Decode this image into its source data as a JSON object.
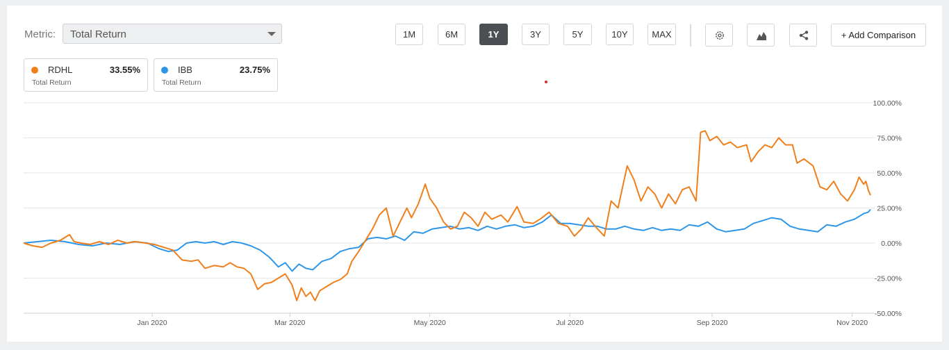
{
  "metric": {
    "label": "Metric:",
    "value": "Total Return"
  },
  "ranges": [
    {
      "label": "1M",
      "active": false
    },
    {
      "label": "6M",
      "active": false
    },
    {
      "label": "1Y",
      "active": true
    },
    {
      "label": "3Y",
      "active": false
    },
    {
      "label": "5Y",
      "active": false
    },
    {
      "label": "10Y",
      "active": false
    },
    {
      "label": "MAX",
      "active": false
    }
  ],
  "tools": [
    {
      "icon": "gear-icon"
    },
    {
      "icon": "area-chart-icon"
    },
    {
      "icon": "share-icon"
    }
  ],
  "add_comparison": "+ Add Comparison",
  "legend": [
    {
      "symbol": "RDHL",
      "value": "33.55%",
      "sub": "Total Return",
      "color": "#f07f1b"
    },
    {
      "symbol": "IBB",
      "value": "23.75%",
      "sub": "Total Return",
      "color": "#2e96e8"
    }
  ],
  "chart_data": {
    "type": "line",
    "y_ticks": [
      "100.00%",
      "75.00%",
      "50.00%",
      "25.00%",
      "0.00%",
      "-25.00%",
      "-50.00%"
    ],
    "ylim": [
      -50,
      100
    ],
    "x_ticks": [
      {
        "label": "Jan 2020",
        "date": "2020-01-01"
      },
      {
        "label": "Mar 2020",
        "date": "2020-03-01"
      },
      {
        "label": "May 2020",
        "date": "2020-05-01"
      },
      {
        "label": "Jul 2020",
        "date": "2020-07-01"
      },
      {
        "label": "Sep 2020",
        "date": "2020-09-01"
      },
      {
        "label": "Nov 2020",
        "date": "2020-11-01"
      }
    ],
    "xlim": [
      "2019-11-06",
      "2020-11-09"
    ],
    "series": [
      {
        "name": "RDHL",
        "color": "#f07f1b",
        "points": [
          [
            "2019-11-06",
            0
          ],
          [
            "2019-11-10",
            -2
          ],
          [
            "2019-11-14",
            -3
          ],
          [
            "2019-11-18",
            0
          ],
          [
            "2019-11-22",
            2
          ],
          [
            "2019-11-26",
            6
          ],
          [
            "2019-11-28",
            1
          ],
          [
            "2019-12-01",
            0
          ],
          [
            "2019-12-05",
            -1
          ],
          [
            "2019-12-09",
            1
          ],
          [
            "2019-12-13",
            -1
          ],
          [
            "2019-12-17",
            2
          ],
          [
            "2019-12-21",
            0
          ],
          [
            "2019-12-25",
            1
          ],
          [
            "2019-12-29",
            0
          ],
          [
            "2020-01-02",
            -1
          ],
          [
            "2020-01-06",
            -3
          ],
          [
            "2020-01-10",
            -5
          ],
          [
            "2020-01-14",
            -12
          ],
          [
            "2020-01-18",
            -13
          ],
          [
            "2020-01-21",
            -12
          ],
          [
            "2020-01-24",
            -18
          ],
          [
            "2020-01-28",
            -16
          ],
          [
            "2020-02-01",
            -17
          ],
          [
            "2020-02-04",
            -14
          ],
          [
            "2020-02-07",
            -17
          ],
          [
            "2020-02-10",
            -18
          ],
          [
            "2020-02-13",
            -22
          ],
          [
            "2020-02-16",
            -33
          ],
          [
            "2020-02-19",
            -29
          ],
          [
            "2020-02-22",
            -28
          ],
          [
            "2020-02-25",
            -25
          ],
          [
            "2020-02-28",
            -22
          ],
          [
            "2020-03-02",
            -30
          ],
          [
            "2020-03-04",
            -41
          ],
          [
            "2020-03-06",
            -32
          ],
          [
            "2020-03-08",
            -38
          ],
          [
            "2020-03-10",
            -35
          ],
          [
            "2020-03-12",
            -41
          ],
          [
            "2020-03-14",
            -34
          ],
          [
            "2020-03-17",
            -31
          ],
          [
            "2020-03-20",
            -28
          ],
          [
            "2020-03-23",
            -26
          ],
          [
            "2020-03-26",
            -22
          ],
          [
            "2020-03-28",
            -13
          ],
          [
            "2020-03-31",
            -6
          ],
          [
            "2020-04-03",
            2
          ],
          [
            "2020-04-06",
            10
          ],
          [
            "2020-04-09",
            20
          ],
          [
            "2020-04-12",
            25
          ],
          [
            "2020-04-15",
            5
          ],
          [
            "2020-04-18",
            15
          ],
          [
            "2020-04-21",
            25
          ],
          [
            "2020-04-23",
            18
          ],
          [
            "2020-04-26",
            28
          ],
          [
            "2020-04-29",
            42
          ],
          [
            "2020-05-01",
            32
          ],
          [
            "2020-05-04",
            25
          ],
          [
            "2020-05-07",
            15
          ],
          [
            "2020-05-10",
            10
          ],
          [
            "2020-05-13",
            12
          ],
          [
            "2020-05-16",
            22
          ],
          [
            "2020-05-19",
            18
          ],
          [
            "2020-05-22",
            12
          ],
          [
            "2020-05-25",
            22
          ],
          [
            "2020-05-28",
            17
          ],
          [
            "2020-06-01",
            20
          ],
          [
            "2020-06-04",
            15
          ],
          [
            "2020-06-08",
            26
          ],
          [
            "2020-06-11",
            15
          ],
          [
            "2020-06-15",
            14
          ],
          [
            "2020-06-18",
            17
          ],
          [
            "2020-06-22",
            22
          ],
          [
            "2020-06-26",
            14
          ],
          [
            "2020-06-30",
            12
          ],
          [
            "2020-07-03",
            5
          ],
          [
            "2020-07-06",
            10
          ],
          [
            "2020-07-09",
            18
          ],
          [
            "2020-07-12",
            12
          ],
          [
            "2020-07-16",
            5
          ],
          [
            "2020-07-19",
            30
          ],
          [
            "2020-07-22",
            25
          ],
          [
            "2020-07-26",
            55
          ],
          [
            "2020-07-29",
            45
          ],
          [
            "2020-08-01",
            30
          ],
          [
            "2020-08-04",
            40
          ],
          [
            "2020-08-07",
            35
          ],
          [
            "2020-08-10",
            25
          ],
          [
            "2020-08-13",
            35
          ],
          [
            "2020-08-16",
            28
          ],
          [
            "2020-08-19",
            38
          ],
          [
            "2020-08-22",
            40
          ],
          [
            "2020-08-25",
            30
          ],
          [
            "2020-08-27",
            79
          ],
          [
            "2020-08-29",
            80
          ],
          [
            "2020-08-31",
            73
          ],
          [
            "2020-09-03",
            76
          ],
          [
            "2020-09-06",
            70
          ],
          [
            "2020-09-09",
            72
          ],
          [
            "2020-09-12",
            68
          ],
          [
            "2020-09-16",
            70
          ],
          [
            "2020-09-18",
            58
          ],
          [
            "2020-09-21",
            65
          ],
          [
            "2020-09-24",
            70
          ],
          [
            "2020-09-27",
            68
          ],
          [
            "2020-09-30",
            75
          ],
          [
            "2020-10-03",
            70
          ],
          [
            "2020-10-06",
            70
          ],
          [
            "2020-10-08",
            57
          ],
          [
            "2020-10-11",
            60
          ],
          [
            "2020-10-15",
            55
          ],
          [
            "2020-10-18",
            40
          ],
          [
            "2020-10-21",
            38
          ],
          [
            "2020-10-24",
            44
          ],
          [
            "2020-10-27",
            35
          ],
          [
            "2020-10-30",
            30
          ],
          [
            "2020-11-02",
            38
          ],
          [
            "2020-11-04",
            47
          ],
          [
            "2020-11-06",
            42
          ],
          [
            "2020-11-07",
            44
          ],
          [
            "2020-11-08",
            38
          ],
          [
            "2020-11-09",
            34
          ]
        ]
      },
      {
        "name": "IBB",
        "color": "#2e96e8",
        "points": [
          [
            "2019-11-06",
            0
          ],
          [
            "2019-11-12",
            1
          ],
          [
            "2019-11-18",
            2
          ],
          [
            "2019-11-24",
            1
          ],
          [
            "2019-11-30",
            -1
          ],
          [
            "2019-12-06",
            -2
          ],
          [
            "2019-12-12",
            0
          ],
          [
            "2019-12-18",
            -1
          ],
          [
            "2019-12-24",
            1
          ],
          [
            "2019-12-30",
            0
          ],
          [
            "2020-01-04",
            -4
          ],
          [
            "2020-01-08",
            -6
          ],
          [
            "2020-01-12",
            -5
          ],
          [
            "2020-01-16",
            0
          ],
          [
            "2020-01-20",
            1
          ],
          [
            "2020-01-24",
            0
          ],
          [
            "2020-01-28",
            1
          ],
          [
            "2020-02-01",
            -1
          ],
          [
            "2020-02-05",
            1
          ],
          [
            "2020-02-09",
            0
          ],
          [
            "2020-02-13",
            -2
          ],
          [
            "2020-02-17",
            -5
          ],
          [
            "2020-02-21",
            -10
          ],
          [
            "2020-02-25",
            -17
          ],
          [
            "2020-02-28",
            -14
          ],
          [
            "2020-03-02",
            -20
          ],
          [
            "2020-03-05",
            -15
          ],
          [
            "2020-03-08",
            -18
          ],
          [
            "2020-03-11",
            -19
          ],
          [
            "2020-03-15",
            -13
          ],
          [
            "2020-03-19",
            -11
          ],
          [
            "2020-03-23",
            -6
          ],
          [
            "2020-03-27",
            -4
          ],
          [
            "2020-03-31",
            -3
          ],
          [
            "2020-04-04",
            3
          ],
          [
            "2020-04-08",
            4
          ],
          [
            "2020-04-12",
            3
          ],
          [
            "2020-04-16",
            5
          ],
          [
            "2020-04-20",
            2
          ],
          [
            "2020-04-24",
            8
          ],
          [
            "2020-04-28",
            7
          ],
          [
            "2020-05-02",
            10
          ],
          [
            "2020-05-06",
            11
          ],
          [
            "2020-05-10",
            12
          ],
          [
            "2020-05-14",
            10
          ],
          [
            "2020-05-18",
            11
          ],
          [
            "2020-05-22",
            9
          ],
          [
            "2020-05-26",
            12
          ],
          [
            "2020-05-30",
            10
          ],
          [
            "2020-06-03",
            12
          ],
          [
            "2020-06-07",
            13
          ],
          [
            "2020-06-11",
            11
          ],
          [
            "2020-06-15",
            12
          ],
          [
            "2020-06-19",
            15
          ],
          [
            "2020-06-23",
            20
          ],
          [
            "2020-06-27",
            14
          ],
          [
            "2020-07-01",
            14
          ],
          [
            "2020-07-05",
            13
          ],
          [
            "2020-07-09",
            12
          ],
          [
            "2020-07-13",
            12
          ],
          [
            "2020-07-17",
            10
          ],
          [
            "2020-07-21",
            10
          ],
          [
            "2020-07-25",
            12
          ],
          [
            "2020-07-29",
            10
          ],
          [
            "2020-08-02",
            9
          ],
          [
            "2020-08-06",
            11
          ],
          [
            "2020-08-10",
            9
          ],
          [
            "2020-08-14",
            10
          ],
          [
            "2020-08-18",
            9
          ],
          [
            "2020-08-22",
            13
          ],
          [
            "2020-08-26",
            12
          ],
          [
            "2020-08-30",
            15
          ],
          [
            "2020-09-03",
            10
          ],
          [
            "2020-09-07",
            8
          ],
          [
            "2020-09-11",
            9
          ],
          [
            "2020-09-15",
            10
          ],
          [
            "2020-09-19",
            14
          ],
          [
            "2020-09-23",
            16
          ],
          [
            "2020-09-27",
            18
          ],
          [
            "2020-10-01",
            17
          ],
          [
            "2020-10-05",
            12
          ],
          [
            "2020-10-09",
            10
          ],
          [
            "2020-10-13",
            9
          ],
          [
            "2020-10-17",
            8
          ],
          [
            "2020-10-21",
            13
          ],
          [
            "2020-10-25",
            12
          ],
          [
            "2020-10-29",
            15
          ],
          [
            "2020-11-02",
            17
          ],
          [
            "2020-11-06",
            21
          ],
          [
            "2020-11-08",
            22
          ],
          [
            "2020-11-09",
            24
          ]
        ]
      }
    ]
  }
}
